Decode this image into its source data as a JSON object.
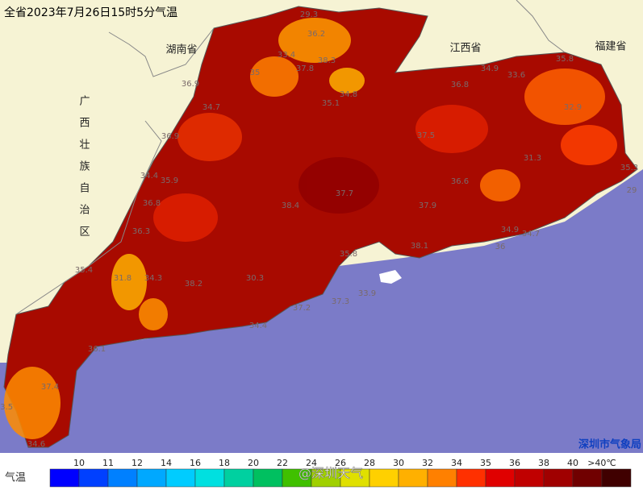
{
  "header": {
    "title": "全省2023年7月26日15时5分气温"
  },
  "provinces": [
    "湖南省",
    "江西省",
    "福建省",
    "广西壮族自治区"
  ],
  "readings": [
    29.3,
    36.2,
    33.4,
    35,
    37.8,
    38.3,
    34.8,
    36.9,
    34.7,
    35.1,
    36.8,
    34.9,
    33.6,
    35.8,
    32.9,
    35.3,
    29,
    37.9,
    38.1,
    35.8,
    33.9,
    37.3,
    37.2,
    34.4,
    31.8,
    34.3,
    36.9,
    34.4,
    35.9,
    36.8,
    36.3,
    35.4,
    33.5,
    34.6,
    37.4,
    36.1,
    38.4,
    37.5,
    36.6,
    34.9,
    34.7,
    36,
    31.3,
    37.7,
    30.3,
    38.2
  ],
  "credit": "深圳市气象局",
  "watermark": "@深圳天气",
  "legend": {
    "title": "气温",
    "labels": [
      "10",
      "11",
      "12",
      "14",
      "16",
      "18",
      "20",
      "22",
      "24",
      "26",
      "28",
      "30",
      "32",
      "34",
      "35",
      "36",
      "38",
      "40",
      ">40℃"
    ],
    "colors": [
      "#0000ff",
      "#0040ff",
      "#0080ff",
      "#00a8ff",
      "#00ccff",
      "#00e0e0",
      "#00d0a0",
      "#00c060",
      "#40c000",
      "#a0d000",
      "#e0e000",
      "#ffd000",
      "#ffb000",
      "#ff8000",
      "#ff3000",
      "#e00000",
      "#c00000",
      "#a00000",
      "#700000",
      "#400000"
    ]
  }
}
